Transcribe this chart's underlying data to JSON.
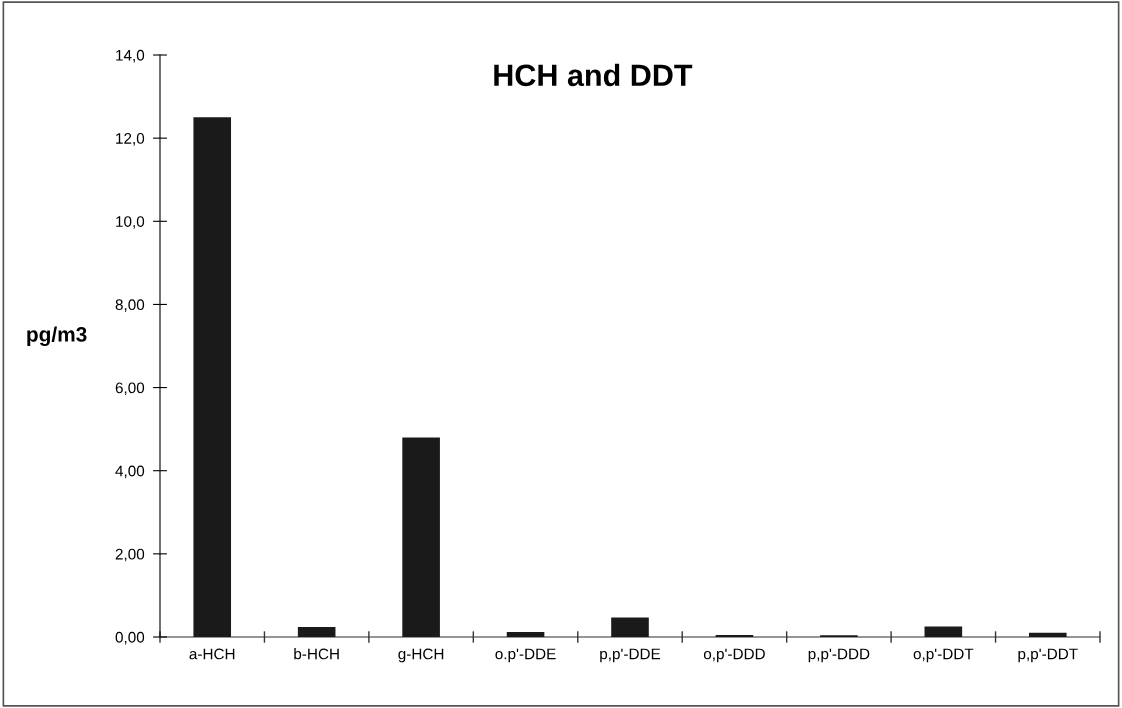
{
  "chart_data": {
    "type": "bar",
    "title": "HCH and DDT",
    "ylabel": "pg/m3",
    "categories": [
      "a-HCH",
      "b-HCH",
      "g-HCH",
      "o.p'-DDE",
      "p,p'-DDE",
      "o,p'-DDD",
      "p,p'-DDD",
      "o,p'-DDT",
      "p,p'-DDT"
    ],
    "values": [
      12.5,
      0.24,
      4.8,
      0.12,
      0.47,
      0.05,
      0.04,
      0.25,
      0.1
    ],
    "color": "#1a1a1a",
    "ylim": [
      0,
      14
    ],
    "yticks": [
      {
        "value": 0,
        "label": "0,00"
      },
      {
        "value": 2,
        "label": "2,00"
      },
      {
        "value": 4,
        "label": "4,00"
      },
      {
        "value": 6,
        "label": "6,00"
      },
      {
        "value": 8,
        "label": "8,00"
      },
      {
        "value": 10,
        "label": "10,0"
      },
      {
        "value": 12,
        "label": "12,0"
      },
      {
        "value": 14,
        "label": "14,0"
      }
    ],
    "grid": false,
    "legend": false
  }
}
